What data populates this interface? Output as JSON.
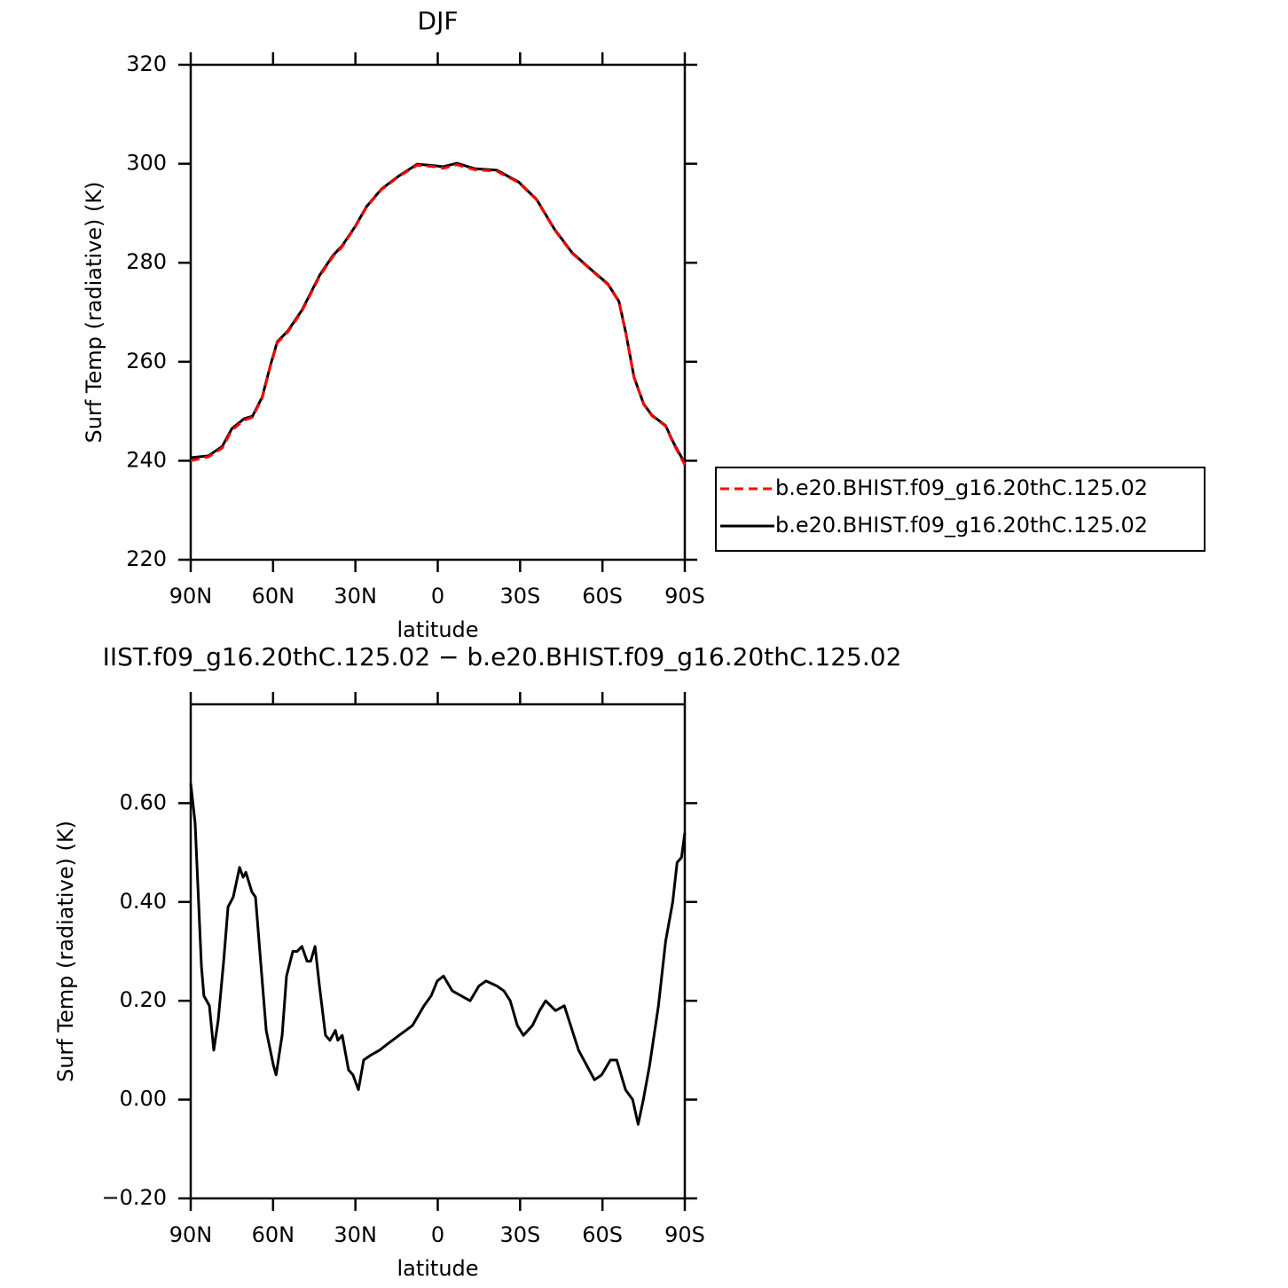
{
  "chart_data": [
    {
      "type": "line",
      "title": "DJF",
      "xlabel": "latitude",
      "ylabel": "Surf Temp (radiative) (K)",
      "xlim": [
        90,
        -90
      ],
      "xticks": [
        {
          "value": 90,
          "label": "90N"
        },
        {
          "value": 60,
          "label": "60N"
        },
        {
          "value": 30,
          "label": "30N"
        },
        0,
        {
          "value": -30,
          "label": "30S"
        },
        {
          "value": -60,
          "label": "60S"
        },
        {
          "value": -90,
          "label": "90S"
        }
      ],
      "ylim": [
        220,
        320
      ],
      "yticks": [
        220,
        240,
        260,
        280,
        300,
        320
      ],
      "legend": "outside right",
      "x": [
        90,
        83.5,
        78.5,
        75,
        70.5,
        67.5,
        64,
        61,
        58.5,
        54.5,
        49.5,
        43,
        38,
        35,
        30,
        26,
        20.5,
        14,
        7.5,
        1,
        -2,
        -7,
        -13.5,
        -21.5,
        -29.5,
        -36,
        -42.5,
        -49,
        -55.5,
        -62,
        -66,
        -68.5,
        -71.5,
        -75,
        -78,
        -83,
        -86,
        -90
      ],
      "series": [
        {
          "name": "b.e20.BHIST.f09_g16.20thC.125.02",
          "color": "#ff0000",
          "linestyle": "dashed",
          "values": [
            240.0,
            240.8,
            242.6,
            246.2,
            248.2,
            248.8,
            252.6,
            259.0,
            263.8,
            266.1,
            270.2,
            277.3,
            281.4,
            283.1,
            287.3,
            291.2,
            294.8,
            297.5,
            299.7,
            299.4,
            299.1,
            299.8,
            298.8,
            298.5,
            296.2,
            292.7,
            286.7,
            281.9,
            278.7,
            275.6,
            272.1,
            265.8,
            256.8,
            251.4,
            249.1,
            247.0,
            243.3,
            239.2
          ]
        },
        {
          "name": "b.e20.BHIST.f09_g16.20thC.125.02",
          "color": "#000000",
          "linestyle": "solid",
          "values": [
            240.6,
            241.0,
            242.9,
            246.5,
            248.5,
            249.0,
            252.8,
            259.2,
            264.0,
            266.3,
            270.4,
            277.5,
            281.6,
            283.3,
            287.4,
            291.3,
            294.9,
            297.6,
            299.9,
            299.6,
            299.4,
            300.1,
            299.0,
            298.7,
            296.3,
            292.8,
            286.8,
            282.0,
            278.8,
            275.7,
            272.2,
            265.9,
            256.9,
            251.5,
            249.2,
            247.1,
            243.5,
            239.5
          ]
        }
      ]
    },
    {
      "type": "line",
      "title": "IIST.f09_g16.20thC.125.02 − b.e20.BHIST.f09_g16.20thC.125.02",
      "xlabel": "latitude",
      "ylabel": "Surf Temp (radiative) (K)",
      "xlim": [
        90,
        -90
      ],
      "xticks": [
        {
          "value": 90,
          "label": "90N"
        },
        {
          "value": 60,
          "label": "60N"
        },
        {
          "value": 30,
          "label": "30N"
        },
        0,
        {
          "value": -30,
          "label": "30S"
        },
        {
          "value": -60,
          "label": "60S"
        },
        {
          "value": -90,
          "label": "90S"
        }
      ],
      "ylim": [
        -0.2,
        0.8
      ],
      "yticks": [
        {
          "value": -0.2,
          "label": "−0.20"
        },
        {
          "value": 0,
          "label": "0.00"
        },
        {
          "value": 0.2,
          "label": "0.20"
        },
        {
          "value": 0.4,
          "label": "0.40"
        },
        {
          "value": 0.6,
          "label": "0.60"
        }
      ],
      "x": [
        90,
        88.4,
        86.1,
        85.2,
        83.2,
        81.6,
        80,
        78,
        76.4,
        74.5,
        72.2,
        70.9,
        69.9,
        67.7,
        66.4,
        64.1,
        62.5,
        59.9,
        58.9,
        56.7,
        55.1,
        52.8,
        51.2,
        49.5,
        47.6,
        46.3,
        44.7,
        43.1,
        40.9,
        39.3,
        37.3,
        36.4,
        34.8,
        32.5,
        30.9,
        28.9,
        27,
        24.4,
        21.2,
        18.9,
        14.1,
        9.2,
        5,
        2.4,
        0.2,
        -2.1,
        -5.3,
        -11.8,
        -15,
        -17.6,
        -21.5,
        -24.1,
        -26.4,
        -29,
        -31.2,
        -34.5,
        -37.1,
        -39.3,
        -42.9,
        -46.1,
        -51.3,
        -57.1,
        -59.7,
        -62.9,
        -65.2,
        -66.8,
        -68.4,
        -71,
        -73,
        -74.9,
        -77.2,
        -80.4,
        -83,
        -85.6,
        -87.2,
        -88.8,
        -90
      ],
      "series": [
        {
          "color": "#000000",
          "linestyle": "solid",
          "values": [
            0.64,
            0.56,
            0.27,
            0.21,
            0.19,
            0.1,
            0.16,
            0.28,
            0.39,
            0.41,
            0.47,
            0.45,
            0.46,
            0.42,
            0.41,
            0.25,
            0.14,
            0.07,
            0.05,
            0.13,
            0.25,
            0.3,
            0.3,
            0.31,
            0.28,
            0.28,
            0.31,
            0.23,
            0.13,
            0.12,
            0.14,
            0.12,
            0.13,
            0.06,
            0.05,
            0.02,
            0.08,
            0.09,
            0.1,
            0.11,
            0.13,
            0.15,
            0.19,
            0.21,
            0.24,
            0.25,
            0.22,
            0.2,
            0.23,
            0.24,
            0.23,
            0.22,
            0.2,
            0.15,
            0.13,
            0.15,
            0.18,
            0.2,
            0.18,
            0.19,
            0.1,
            0.04,
            0.05,
            0.08,
            0.08,
            0.05,
            0.02,
            0,
            -0.05,
            0,
            0.07,
            0.19,
            0.32,
            0.4,
            0.48,
            0.49,
            0.54
          ]
        }
      ]
    }
  ]
}
